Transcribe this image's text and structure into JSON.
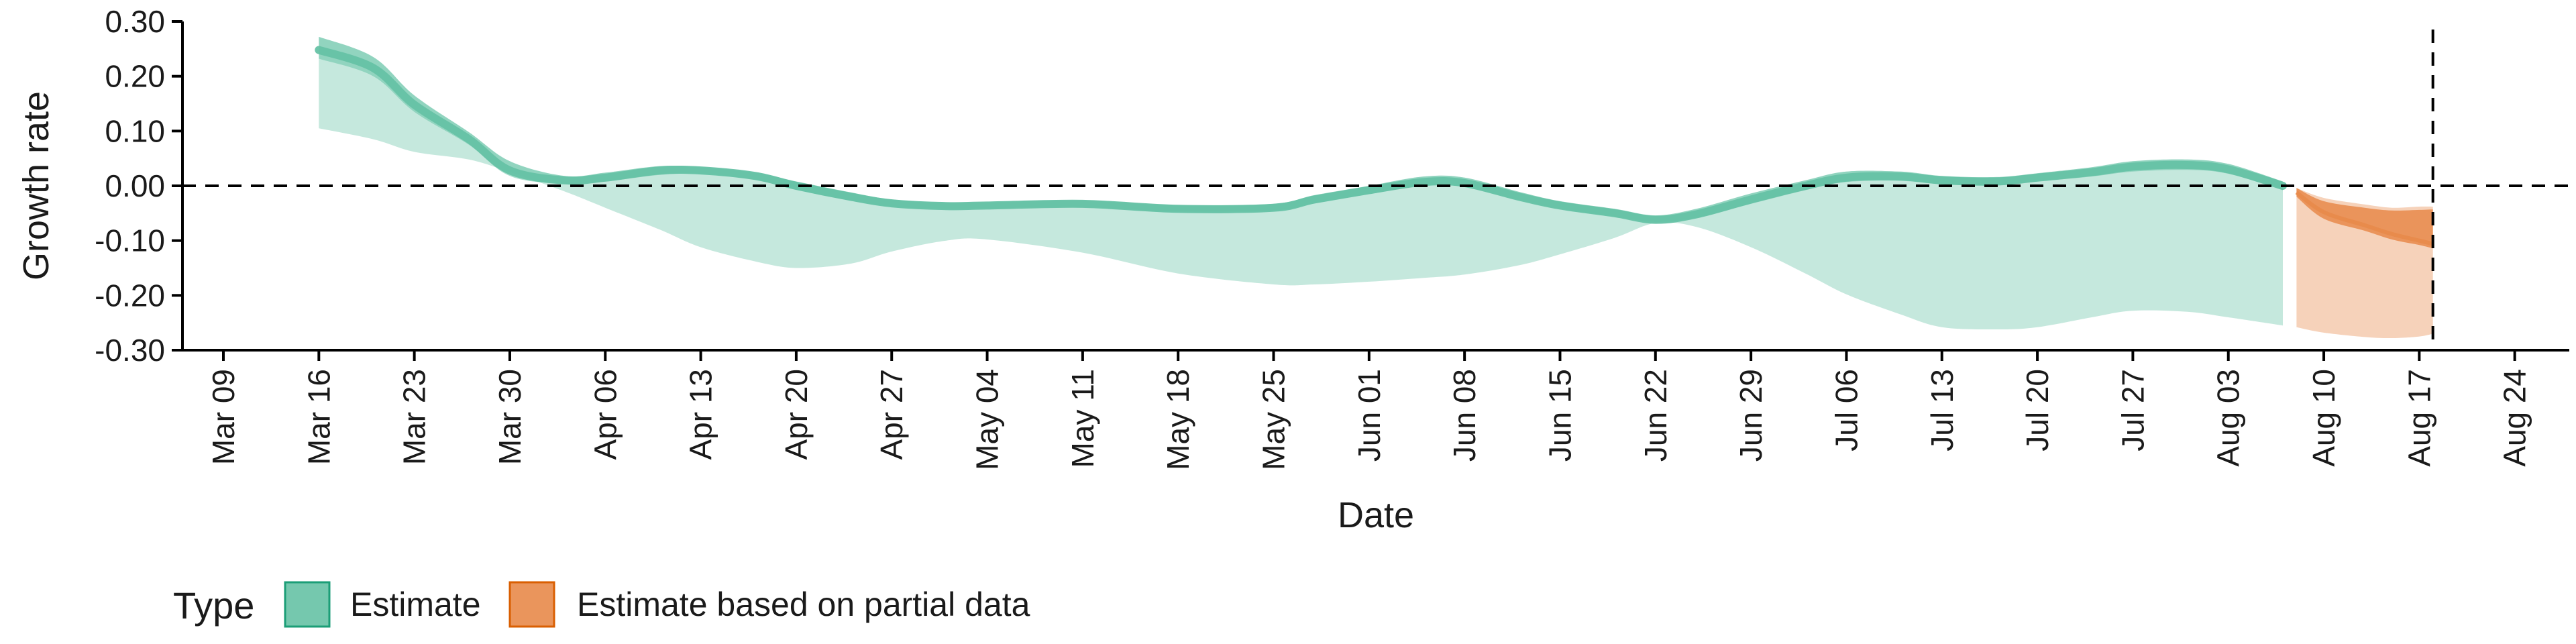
{
  "chart_data": {
    "type": "area",
    "xlabel": "Date",
    "ylabel": "Growth rate",
    "ylim": [
      -0.3,
      0.3
    ],
    "yticks": [
      0.3,
      0.2,
      0.1,
      0.0,
      -0.1,
      -0.2,
      -0.3
    ],
    "ytick_labels": [
      "0.30",
      "0.20",
      "0.10",
      "0.00",
      "-0.10",
      "-0.20",
      "-0.30"
    ],
    "xlim": [
      "2020-03-06",
      "2020-08-28"
    ],
    "xticks": [
      "2020-03-09",
      "2020-03-16",
      "2020-03-23",
      "2020-03-30",
      "2020-04-06",
      "2020-04-13",
      "2020-04-20",
      "2020-04-27",
      "2020-05-04",
      "2020-05-11",
      "2020-05-18",
      "2020-05-25",
      "2020-06-01",
      "2020-06-08",
      "2020-06-15",
      "2020-06-22",
      "2020-06-29",
      "2020-07-06",
      "2020-07-13",
      "2020-07-20",
      "2020-07-27",
      "2020-08-03",
      "2020-08-10",
      "2020-08-17",
      "2020-08-24"
    ],
    "xtick_labels": [
      "Mar 09",
      "Mar 16",
      "Mar 23",
      "Mar 30",
      "Apr 06",
      "Apr 13",
      "Apr 20",
      "Apr 27",
      "May 04",
      "May 11",
      "May 18",
      "May 25",
      "Jun 01",
      "Jun 08",
      "Jun 15",
      "Jun 22",
      "Jun 29",
      "Jul 06",
      "Jul 13",
      "Jul 20",
      "Jul 27",
      "Aug 03",
      "Aug 10",
      "Aug 17",
      "Aug 24"
    ],
    "reference_lines": {
      "horizontal": 0.0,
      "vertical": "2020-08-18"
    },
    "grid": false,
    "legend": {
      "title": "Type",
      "placement": "bottom-left",
      "entries": [
        {
          "label": "Estimate",
          "color": "#66c2a5"
        },
        {
          "label": "Estimate based on partial data",
          "color": "#e8894a"
        }
      ]
    },
    "series": [
      {
        "name": "Estimate",
        "color": "#66c2a5",
        "x": [
          "2020-03-16",
          "2020-03-20",
          "2020-03-23",
          "2020-03-27",
          "2020-03-30",
          "2020-04-03",
          "2020-04-06",
          "2020-04-10",
          "2020-04-13",
          "2020-04-17",
          "2020-04-20",
          "2020-04-24",
          "2020-04-27",
          "2020-05-01",
          "2020-05-04",
          "2020-05-11",
          "2020-05-18",
          "2020-05-25",
          "2020-05-28",
          "2020-06-01",
          "2020-06-05",
          "2020-06-08",
          "2020-06-12",
          "2020-06-15",
          "2020-06-19",
          "2020-06-22",
          "2020-06-25",
          "2020-06-29",
          "2020-07-03",
          "2020-07-06",
          "2020-07-10",
          "2020-07-13",
          "2020-07-17",
          "2020-07-20",
          "2020-07-24",
          "2020-07-27",
          "2020-07-31",
          "2020-08-03",
          "2020-08-07"
        ],
        "median": [
          0.248,
          0.215,
          0.148,
          0.085,
          0.028,
          0.01,
          0.015,
          0.028,
          0.028,
          0.018,
          0.0,
          -0.02,
          -0.032,
          -0.037,
          -0.036,
          -0.033,
          -0.042,
          -0.04,
          -0.025,
          -0.008,
          0.007,
          0.005,
          -0.02,
          -0.036,
          -0.05,
          -0.062,
          -0.052,
          -0.025,
          0.0,
          0.015,
          0.017,
          0.01,
          0.008,
          0.015,
          0.025,
          0.035,
          0.038,
          0.03,
          0.0
        ],
        "upper": [
          0.272,
          0.235,
          0.165,
          0.098,
          0.045,
          0.018,
          0.024,
          0.036,
          0.034,
          0.024,
          0.008,
          -0.012,
          -0.025,
          -0.031,
          -0.03,
          -0.027,
          -0.036,
          -0.033,
          -0.017,
          0.0,
          0.017,
          0.015,
          -0.011,
          -0.028,
          -0.042,
          -0.054,
          -0.042,
          -0.014,
          0.01,
          0.026,
          0.026,
          0.018,
          0.016,
          0.023,
          0.034,
          0.045,
          0.048,
          0.04,
          0.008
        ],
        "lower": [
          0.105,
          0.085,
          0.062,
          0.048,
          0.025,
          -0.01,
          -0.04,
          -0.08,
          -0.112,
          -0.138,
          -0.15,
          -0.142,
          -0.12,
          -0.1,
          -0.098,
          -0.122,
          -0.16,
          -0.18,
          -0.18,
          -0.175,
          -0.168,
          -0.162,
          -0.145,
          -0.125,
          -0.095,
          -0.068,
          -0.075,
          -0.112,
          -0.16,
          -0.198,
          -0.235,
          -0.258,
          -0.262,
          -0.258,
          -0.24,
          -0.228,
          -0.23,
          -0.24,
          -0.255
        ],
        "inner_lower": [
          0.232,
          0.2,
          0.135,
          0.075,
          0.018,
          0.004,
          0.008,
          0.02,
          0.022,
          0.011,
          -0.007,
          -0.027,
          -0.038,
          -0.042,
          -0.041,
          -0.039,
          -0.047,
          -0.045,
          -0.032,
          -0.015,
          0.0,
          -0.002,
          -0.026,
          -0.042,
          -0.056,
          -0.066,
          -0.058,
          -0.033,
          -0.008,
          0.007,
          0.009,
          0.003,
          0.001,
          0.008,
          0.017,
          0.026,
          0.029,
          0.022,
          -0.008
        ]
      },
      {
        "name": "Estimate based on partial data",
        "color": "#e8894a",
        "x": [
          "2020-08-08",
          "2020-08-10",
          "2020-08-13",
          "2020-08-15",
          "2020-08-17",
          "2020-08-18"
        ],
        "median": [
          -0.012,
          -0.048,
          -0.072,
          -0.088,
          -0.1,
          -0.106
        ],
        "upper": [
          -0.004,
          -0.022,
          -0.034,
          -0.04,
          -0.038,
          -0.038
        ],
        "lower": [
          -0.258,
          -0.268,
          -0.276,
          -0.278,
          -0.275,
          -0.27
        ],
        "inner_upper": [
          -0.004,
          -0.028,
          -0.04,
          -0.045,
          -0.044,
          -0.043
        ],
        "inner_lower": [
          -0.02,
          -0.06,
          -0.082,
          -0.098,
          -0.108,
          -0.114
        ]
      }
    ]
  }
}
